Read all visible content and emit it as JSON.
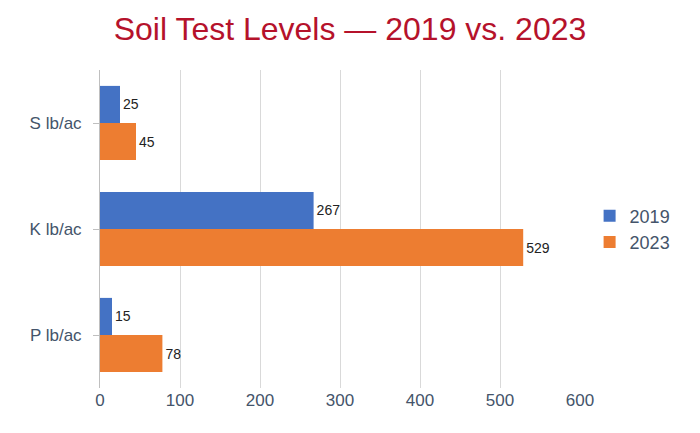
{
  "chart_data": {
    "type": "bar",
    "title": "Soil Test Levels — 2019 vs. 2023",
    "orientation": "horizontal",
    "categories": [
      "S lb/ac",
      "K lb/ac",
      "P lb/ac"
    ],
    "series": [
      {
        "name": "2019",
        "color": "#4472c4",
        "values": [
          25,
          267,
          15
        ]
      },
      {
        "name": "2023",
        "color": "#ed7d31",
        "values": [
          45,
          529,
          78
        ]
      }
    ],
    "xlim": [
      0,
      600
    ],
    "xticks": [
      0,
      100,
      200,
      300,
      400,
      500,
      600
    ],
    "grid": true,
    "legend": "right",
    "data_labels": true
  }
}
